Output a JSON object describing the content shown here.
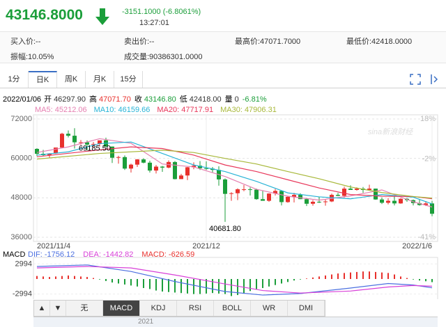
{
  "header": {
    "price": "43146.8000",
    "change": "-3151.1000 (-6.8061%)",
    "time": "13:27:01",
    "rows": [
      [
        "买入价:--",
        "卖出价:--",
        "最高价:47071.7000",
        "最低价:42418.0000"
      ],
      [
        "振幅:10.05%",
        "成交量:90386301.0000"
      ]
    ]
  },
  "tabs": [
    "1分",
    "日K",
    "周K",
    "月K",
    "15分"
  ],
  "info": {
    "date": "2022/01/06",
    "items": [
      [
        "开",
        "46297.90"
      ],
      [
        "高",
        "47071.70"
      ],
      [
        "收",
        "43146.80"
      ],
      [
        "低",
        "42418.00"
      ],
      [
        "量",
        "0"
      ]
    ],
    "pct": "-6.81%"
  },
  "watermark": "sina新浪财经",
  "indicators": [
    "▲",
    "▼",
    "无",
    "MACD",
    "KDJ",
    "RSI",
    "BOLL",
    "WR",
    "DMI"
  ],
  "bottom_label": "2021",
  "chart_data": {
    "type": "candlestick",
    "ylim": [
      36000,
      72000
    ],
    "yticks": [
      36000,
      48000,
      60000,
      72000
    ],
    "y2lim": [
      -41,
      18
    ],
    "y2ticks": [
      {
        "value": 18,
        "label": "18%"
      },
      {
        "value": -2,
        "label": "-2%"
      },
      {
        "value": -41,
        "label": "-41%"
      }
    ],
    "xticks": [
      {
        "value": 0,
        "label": "2021/11/4"
      },
      {
        "value": 27,
        "label": "2021/12"
      },
      {
        "value": 63,
        "label": "2022/1/6"
      }
    ],
    "up_color": "#e8302c",
    "down_color": "#1b9e3a",
    "grid": true,
    "annotations": [
      {
        "index": 6,
        "field": 2,
        "label": "69185.50"
      },
      {
        "index": 30,
        "field": 2,
        "label": "40681.80"
      }
    ],
    "candles": [
      [
        62900,
        63100,
        60700,
        61400
      ],
      [
        61400,
        62600,
        60700,
        61000
      ],
      [
        61000,
        61600,
        60100,
        61500
      ],
      [
        61500,
        63300,
        61400,
        63300
      ],
      [
        63300,
        67800,
        63100,
        67500
      ],
      [
        67500,
        68500,
        66400,
        66900
      ],
      [
        66900,
        69185.5,
        63000,
        64900
      ],
      [
        64900,
        65600,
        64100,
        64900
      ],
      [
        64900,
        65500,
        62300,
        64200
      ],
      [
        64200,
        65000,
        63400,
        64400
      ],
      [
        64400,
        65300,
        63600,
        65500
      ],
      [
        65500,
        66300,
        63500,
        63600
      ],
      [
        63600,
        63600,
        58600,
        60200
      ],
      [
        60200,
        60800,
        58400,
        60400
      ],
      [
        60400,
        60900,
        56500,
        56900
      ],
      [
        56900,
        58400,
        55700,
        58100
      ],
      [
        58100,
        59800,
        57400,
        59700
      ],
      [
        59700,
        60000,
        58500,
        58700
      ],
      [
        58700,
        59300,
        55700,
        56300
      ],
      [
        56300,
        58000,
        55400,
        57500
      ],
      [
        57500,
        57700,
        55900,
        57200
      ],
      [
        57200,
        59400,
        57000,
        58900
      ],
      [
        58900,
        59200,
        53600,
        53700
      ],
      [
        53700,
        55300,
        53700,
        54800
      ],
      [
        54800,
        57400,
        53400,
        57300
      ],
      [
        57300,
        58800,
        56700,
        57800
      ],
      [
        57800,
        59200,
        56500,
        57000
      ],
      [
        57000,
        59100,
        56500,
        56900
      ],
      [
        56900,
        57400,
        55800,
        56500
      ],
      [
        56500,
        57600,
        51700,
        53600
      ],
      [
        53600,
        53900,
        40681.8,
        49200
      ],
      [
        49200,
        49700,
        47100,
        49400
      ],
      [
        49400,
        50900,
        47300,
        50600
      ],
      [
        50600,
        51900,
        50000,
        50600
      ],
      [
        50600,
        51200,
        48700,
        50500
      ],
      [
        50500,
        50800,
        47400,
        47600
      ],
      [
        47600,
        50100,
        47200,
        47100
      ],
      [
        47100,
        49400,
        46800,
        49300
      ],
      [
        49300,
        50700,
        48700,
        50100
      ],
      [
        50100,
        50200,
        45700,
        46700
      ],
      [
        46700,
        48600,
        46500,
        48300
      ],
      [
        48300,
        49500,
        46600,
        48900
      ],
      [
        48900,
        49400,
        47600,
        47600
      ],
      [
        47600,
        47900,
        45500,
        46200
      ],
      [
        46200,
        47300,
        45600,
        46800
      ],
      [
        46800,
        48300,
        46400,
        46700
      ],
      [
        46700,
        47500,
        45600,
        46900
      ],
      [
        46900,
        49300,
        46700,
        48900
      ],
      [
        48900,
        49500,
        48500,
        48600
      ],
      [
        48600,
        51400,
        48100,
        50800
      ],
      [
        50800,
        51800,
        50500,
        50400
      ],
      [
        50400,
        51200,
        50200,
        50800
      ],
      [
        50800,
        51300,
        49500,
        50400
      ],
      [
        50400,
        52000,
        50400,
        50800
      ],
      [
        50800,
        50800,
        47400,
        47500
      ],
      [
        47500,
        48100,
        46100,
        46500
      ],
      [
        46500,
        47900,
        46000,
        47100
      ],
      [
        47100,
        48500,
        45700,
        46300
      ],
      [
        46300,
        47900,
        46200,
        47700
      ],
      [
        47700,
        47900,
        46800,
        47300
      ],
      [
        47300,
        47500,
        45700,
        46400
      ],
      [
        46400,
        47500,
        45600,
        45800
      ],
      [
        45800,
        47000,
        45500,
        46297.9
      ],
      [
        46297.9,
        47071.7,
        42418,
        43146.8
      ]
    ],
    "ma": [
      {
        "name": "MA5: 45212.06",
        "color": "#e57fb0",
        "x": [
          0,
          5,
          10,
          15,
          20,
          25,
          30,
          35,
          40,
          45,
          50,
          55,
          60,
          63
        ],
        "values": [
          61800,
          63500,
          66000,
          64600,
          58300,
          57400,
          54500,
          50600,
          48500,
          47300,
          48600,
          50400,
          46800,
          45212.06
        ]
      },
      {
        "name": "MA10: 46159.66",
        "color": "#27b3d6",
        "x": [
          0,
          5,
          10,
          15,
          20,
          25,
          30,
          35,
          40,
          45,
          50,
          55,
          60,
          63
        ],
        "values": [
          61000,
          62000,
          64500,
          65000,
          61500,
          58000,
          56000,
          53000,
          49500,
          48300,
          47700,
          49000,
          48200,
          46159.66
        ]
      },
      {
        "name": "MA20: 47717.91",
        "color": "#e8375a",
        "x": [
          0,
          10,
          15,
          20,
          25,
          30,
          35,
          40,
          45,
          50,
          55,
          60,
          63
        ],
        "values": [
          60500,
          62600,
          63500,
          63000,
          61000,
          58000,
          56000,
          53500,
          51000,
          49000,
          48500,
          48400,
          47717.91
        ]
      },
      {
        "name": "MA30: 47906.31",
        "color": "#a8b83a",
        "x": [
          0,
          10,
          20,
          25,
          30,
          35,
          40,
          45,
          50,
          55,
          60,
          63
        ],
        "values": [
          59800,
          61500,
          62500,
          61800,
          60000,
          58300,
          56000,
          53800,
          51300,
          49600,
          48400,
          47906.31
        ]
      }
    ],
    "macd": {
      "title": "MACD",
      "ylim": [
        -4300,
        4300
      ],
      "yticks": [
        2994,
        -2994
      ],
      "lines": [
        {
          "name": "DIF: -1756.12",
          "color": "#4b6fe0",
          "x": [
            0,
            8,
            15,
            22,
            30,
            36,
            42,
            50,
            56,
            60,
            63
          ],
          "values": [
            2500,
            2800,
            1500,
            -500,
            -2500,
            -3200,
            -2900,
            -1800,
            -900,
            -1200,
            -1756.12
          ]
        },
        {
          "name": "DEA: -1442.82",
          "color": "#d83fd8",
          "x": [
            0,
            8,
            15,
            22,
            30,
            36,
            42,
            50,
            56,
            60,
            63
          ],
          "values": [
            2200,
            2500,
            2200,
            800,
            -1000,
            -2300,
            -2800,
            -2400,
            -1600,
            -1300,
            -1442.82
          ]
        }
      ],
      "bar_name": "MACD: -626.59",
      "bar_color": "#e8302c",
      "bars": [
        600,
        500,
        400,
        500,
        600,
        700,
        600,
        500,
        400,
        200,
        -100,
        -400,
        -700,
        -900,
        -1100,
        -1300,
        -1500,
        -1800,
        -2000,
        -2300,
        -2500,
        -2600,
        -2700,
        -2800,
        -2900,
        -3000,
        -3000,
        -2900,
        -2800,
        -2900,
        -3000,
        -3400,
        -3200,
        -2800,
        -2400,
        -2000,
        -1800,
        -1500,
        -1200,
        -900,
        -600,
        -300,
        -100,
        100,
        300,
        500,
        700,
        900,
        1100,
        1200,
        1300,
        1400,
        1500,
        1500,
        1400,
        1300,
        1200,
        900,
        500,
        200,
        -100,
        -300,
        -450,
        -626.59
      ]
    }
  }
}
